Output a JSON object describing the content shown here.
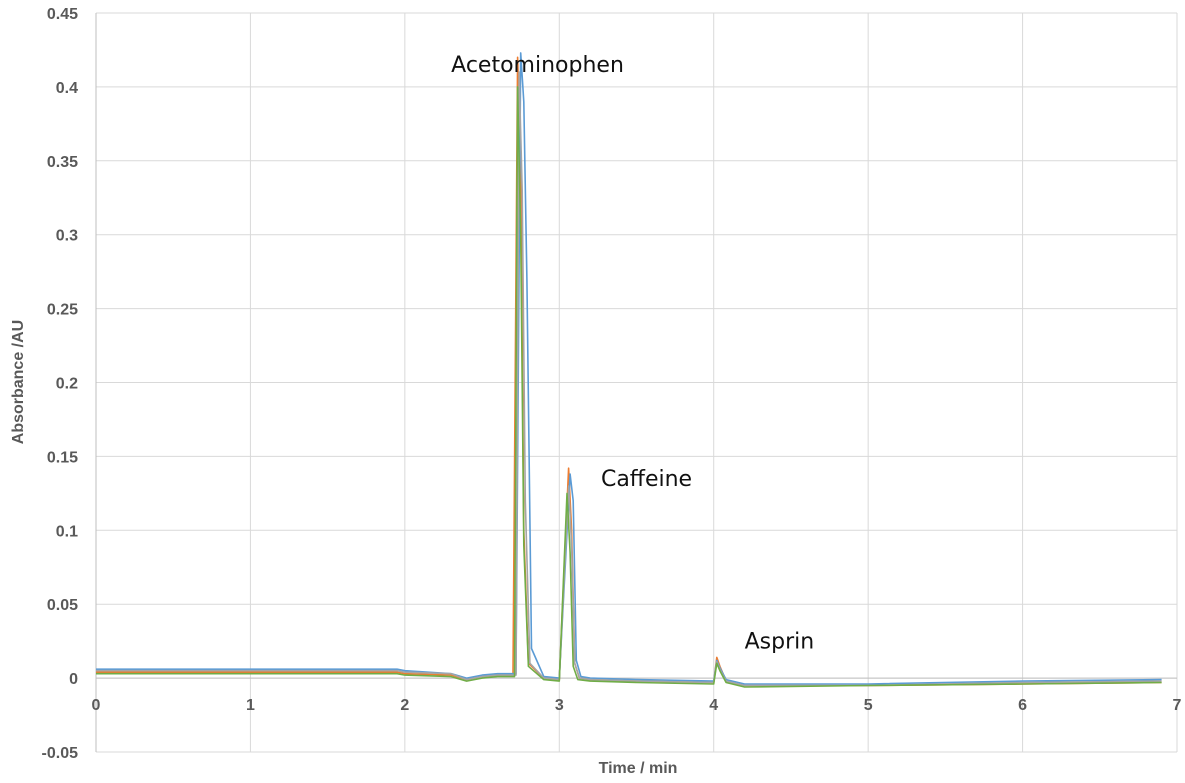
{
  "chart_data": {
    "type": "line",
    "title": "",
    "xlabel": "Time / min",
    "ylabel": "Absorbance  /AU",
    "xlim": [
      0,
      7
    ],
    "ylim": [
      -0.05,
      0.45
    ],
    "xticks": [
      0,
      1,
      2,
      3,
      4,
      5,
      6,
      7
    ],
    "xtick_labels": [
      "0",
      "1",
      "2",
      "3",
      "4",
      "5",
      "6",
      "7"
    ],
    "yticks": [
      -0.05,
      0,
      0.05,
      0.1,
      0.15,
      0.2,
      0.25,
      0.3,
      0.35,
      0.4,
      0.45
    ],
    "ytick_labels": [
      "-0.05",
      "0",
      "0.05",
      "0.1",
      "0.15",
      "0.2",
      "0.25",
      "0.3",
      "0.35",
      "0.4",
      "0.45"
    ],
    "grid": true,
    "legend": "none",
    "annotations": [
      {
        "text": "Acetominophen",
        "x": 2.3,
        "y": 0.41
      },
      {
        "text": "Caffeine",
        "x": 3.27,
        "y": 0.13
      },
      {
        "text": "Asprin",
        "x": 4.2,
        "y": 0.02
      }
    ],
    "series": [
      {
        "color": "#ed7d31",
        "x": [
          0,
          1,
          1.95,
          2.0,
          2.3,
          2.4,
          2.5,
          2.6,
          2.7,
          2.73,
          2.75,
          2.77,
          2.8,
          2.9,
          3.0,
          3.06,
          3.08,
          3.1,
          3.13,
          3.2,
          3.5,
          4.0,
          4.02,
          4.04,
          4.08,
          4.2,
          5,
          6,
          6.9
        ],
        "y": [
          0.004,
          0.004,
          0.004,
          0.003,
          0.002,
          -0.001,
          0.001,
          0.002,
          0.002,
          0.42,
          0.35,
          0.1,
          0.01,
          0.0,
          -0.001,
          0.142,
          0.1,
          0.01,
          0.0,
          -0.001,
          -0.002,
          -0.003,
          0.014,
          0.008,
          -0.002,
          -0.005,
          -0.005,
          -0.004,
          -0.003
        ]
      },
      {
        "color": "#5b9bd5",
        "x": [
          0,
          1,
          1.95,
          2.0,
          2.3,
          2.4,
          2.5,
          2.6,
          2.72,
          2.75,
          2.77,
          2.79,
          2.82,
          2.9,
          3.0,
          3.07,
          3.09,
          3.11,
          3.14,
          3.2,
          3.5,
          4.0,
          4.02,
          4.04,
          4.08,
          4.2,
          5,
          6,
          6.9
        ],
        "y": [
          0.006,
          0.006,
          0.006,
          0.005,
          0.003,
          0.0,
          0.002,
          0.003,
          0.003,
          0.423,
          0.39,
          0.27,
          0.02,
          0.001,
          0.0,
          0.138,
          0.12,
          0.012,
          0.001,
          0.0,
          -0.001,
          -0.002,
          0.012,
          0.007,
          -0.001,
          -0.004,
          -0.004,
          -0.002,
          -0.001
        ]
      },
      {
        "color": "#a5a5a5",
        "x": [
          0,
          1,
          1.95,
          2.0,
          2.3,
          2.4,
          2.5,
          2.6,
          2.72,
          2.74,
          2.76,
          2.78,
          2.81,
          2.9,
          3.0,
          3.06,
          3.08,
          3.1,
          3.13,
          3.2,
          3.5,
          4.0,
          4.02,
          4.04,
          4.08,
          4.2,
          5,
          6,
          6.9
        ],
        "y": [
          0.005,
          0.005,
          0.005,
          0.004,
          0.003,
          -0.001,
          0.001,
          0.002,
          0.002,
          0.41,
          0.33,
          0.12,
          0.01,
          0.0,
          -0.001,
          0.13,
          0.09,
          0.01,
          0.0,
          -0.001,
          -0.002,
          -0.003,
          0.011,
          0.006,
          -0.002,
          -0.005,
          -0.005,
          -0.003,
          -0.002
        ]
      },
      {
        "color": "#70ad47",
        "x": [
          0,
          1,
          1.95,
          2.0,
          2.3,
          2.4,
          2.5,
          2.6,
          2.71,
          2.73,
          2.75,
          2.77,
          2.8,
          2.9,
          3.0,
          3.05,
          3.07,
          3.09,
          3.12,
          3.2,
          3.5,
          4.0,
          4.02,
          4.04,
          4.08,
          4.2,
          5,
          6,
          6.9
        ],
        "y": [
          0.003,
          0.003,
          0.003,
          0.002,
          0.001,
          -0.002,
          0.0,
          0.001,
          0.001,
          0.4,
          0.3,
          0.09,
          0.008,
          -0.001,
          -0.002,
          0.125,
          0.085,
          0.008,
          -0.001,
          -0.002,
          -0.003,
          -0.004,
          0.01,
          0.005,
          -0.003,
          -0.006,
          -0.005,
          -0.004,
          -0.003
        ]
      }
    ]
  }
}
